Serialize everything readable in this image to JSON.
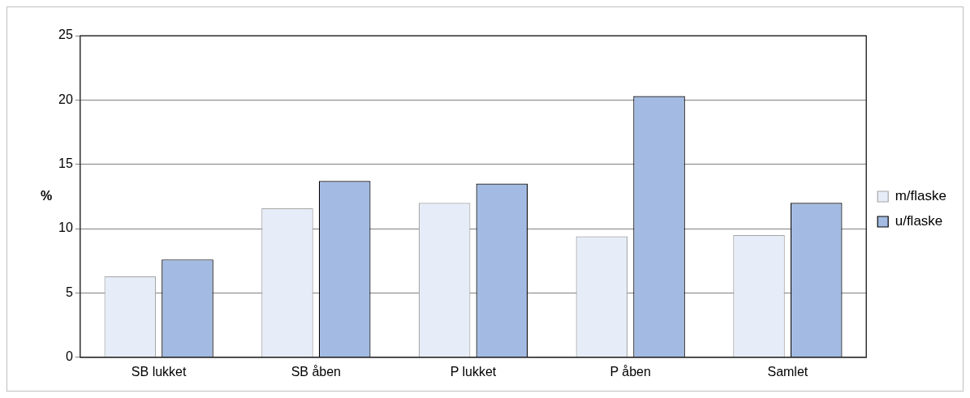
{
  "chart_data": {
    "type": "bar",
    "ylabel": "%",
    "categories": [
      "SB lukket",
      "SB åben",
      "P lukket",
      "P åben",
      "Samlet"
    ],
    "series": [
      {
        "name": "m/flaske",
        "color": "#e6edf8",
        "values": [
          6.3,
          11.6,
          12.0,
          9.4,
          9.5
        ]
      },
      {
        "name": "u/flaske",
        "color": "#a3bbe2",
        "values": [
          7.6,
          13.7,
          13.5,
          20.3,
          12.0
        ]
      }
    ],
    "ylim": [
      0,
      25
    ],
    "yticks": [
      0,
      5,
      10,
      15,
      20,
      25
    ],
    "grid": "y",
    "legend": "right"
  }
}
